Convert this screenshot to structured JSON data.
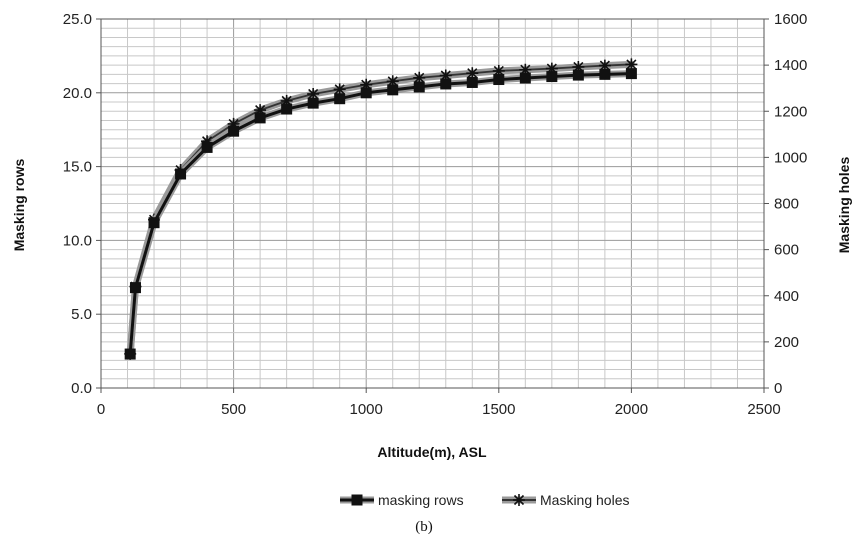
{
  "chart_data": {
    "type": "line",
    "title": "",
    "xlabel": "Altitude(m), ASL",
    "ylabel": "Masking rows",
    "y2label": "Masking holes",
    "xlim": [
      0,
      2500
    ],
    "ylim": [
      0,
      25
    ],
    "y2lim": [
      0,
      1600
    ],
    "xticks": [
      "0",
      "500",
      "1000",
      "1500",
      "2000",
      "2500"
    ],
    "yticks": [
      "0.0",
      "5.0",
      "10.0",
      "15.0",
      "20.0",
      "25.0"
    ],
    "y2ticks": [
      "0",
      "200",
      "400",
      "600",
      "800",
      "1000",
      "1200",
      "1400",
      "1600"
    ],
    "grid": true,
    "legend_position": "bottom",
    "caption": "(b)",
    "colors": {
      "rows": "#111111",
      "holes_halo": "#9a9a9a",
      "holes_core": "#333333",
      "grid": "#c8c8c8",
      "grid_major": "#9a9a9a"
    },
    "series": [
      {
        "name": "masking rows",
        "axis": "left",
        "marker": "square",
        "x": [
          110,
          130,
          200,
          300,
          400,
          500,
          600,
          700,
          800,
          900,
          1000,
          1100,
          1200,
          1300,
          1400,
          1500,
          1600,
          1700,
          1800,
          1900,
          2000
        ],
        "values": [
          2.3,
          6.8,
          11.2,
          14.5,
          16.3,
          17.4,
          18.3,
          18.9,
          19.3,
          19.6,
          20.0,
          20.2,
          20.4,
          20.6,
          20.7,
          20.9,
          21.0,
          21.1,
          21.2,
          21.25,
          21.3
        ]
      },
      {
        "name": "Masking holes",
        "axis": "right",
        "marker": "star",
        "x": [
          110,
          130,
          200,
          300,
          400,
          500,
          600,
          700,
          800,
          900,
          1000,
          1100,
          1200,
          1300,
          1400,
          1500,
          1600,
          1700,
          1800,
          1900,
          2000
        ],
        "values": [
          148,
          440,
          730,
          945,
          1070,
          1145,
          1205,
          1245,
          1275,
          1295,
          1315,
          1330,
          1345,
          1355,
          1365,
          1375,
          1380,
          1385,
          1392,
          1398,
          1403
        ]
      }
    ]
  }
}
